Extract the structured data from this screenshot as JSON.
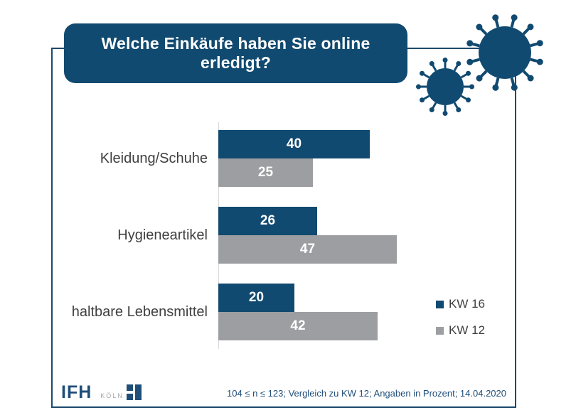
{
  "header": {
    "title": "Welche Einkäufe haben Sie online erledigt?"
  },
  "chart_data": {
    "type": "bar",
    "orientation": "horizontal",
    "categories": [
      "Kleidung/Schuhe",
      "Hygieneartikel",
      "haltbare Lebensmittel"
    ],
    "series": [
      {
        "name": "KW 16",
        "color": "#114a70",
        "values": [
          40,
          26,
          20
        ]
      },
      {
        "name": "KW 12",
        "color": "#9d9ea1",
        "values": [
          25,
          47,
          42
        ]
      }
    ],
    "xlim": [
      0,
      50
    ],
    "value_format": "percent",
    "grid": false,
    "legend_position": "right",
    "title": "Welche Einkäufe haben Sie online erledigt?"
  },
  "legend": {
    "items": [
      {
        "label": "KW 16",
        "color": "#114a70"
      },
      {
        "label": "KW 12",
        "color": "#9d9ea1"
      }
    ]
  },
  "footer": {
    "footnote": "104 ≤ n ≤ 123; Vergleich zu KW 12; Angaben in Prozent; 14.04.2020",
    "logo_text": "IFH",
    "logo_subtext": "KÖLN"
  },
  "icons": {
    "large_virus": "coronavirus-icon",
    "small_virus": "coronavirus-icon"
  },
  "colors": {
    "primary": "#114a70",
    "secondary": "#9d9ea1",
    "border": "#1c4a6d",
    "axis_line": "#d9d9d9",
    "category_label": "#3f3f3f"
  }
}
